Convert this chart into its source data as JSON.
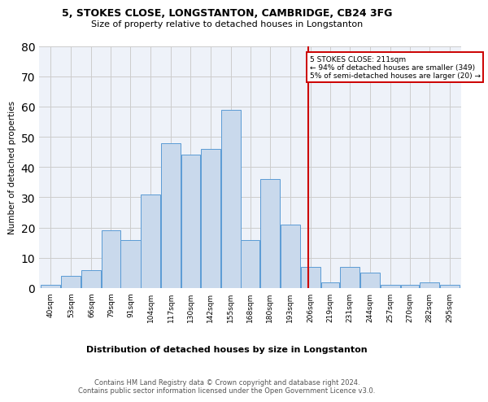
{
  "title1": "5, STOKES CLOSE, LONGSTANTON, CAMBRIDGE, CB24 3FG",
  "title2": "Size of property relative to detached houses in Longstanton",
  "xlabel": "Distribution of detached houses by size in Longstanton",
  "ylabel": "Number of detached properties",
  "footer": "Contains HM Land Registry data © Crown copyright and database right 2024.\nContains public sector information licensed under the Open Government Licence v3.0.",
  "bin_labels": [
    "40sqm",
    "53sqm",
    "66sqm",
    "79sqm",
    "91sqm",
    "104sqm",
    "117sqm",
    "130sqm",
    "142sqm",
    "155sqm",
    "168sqm",
    "180sqm",
    "193sqm",
    "206sqm",
    "219sqm",
    "231sqm",
    "244sqm",
    "257sqm",
    "270sqm",
    "282sqm",
    "295sqm"
  ],
  "bar_heights": [
    1,
    4,
    6,
    19,
    16,
    31,
    48,
    44,
    46,
    59,
    16,
    36,
    21,
    7,
    2,
    7,
    5,
    1,
    1,
    2,
    1
  ],
  "bar_color": "#c9d9ec",
  "bar_edge_color": "#5b9bd5",
  "special_bins": [
    40,
    53,
    66,
    79,
    91,
    104,
    117,
    130,
    142,
    155,
    168,
    180,
    193,
    206,
    219,
    231,
    244,
    257,
    270,
    282,
    295
  ],
  "vline_x": 211,
  "annotation_text": "5 STOKES CLOSE: 211sqm\n← 94% of detached houses are smaller (349)\n5% of semi-detached houses are larger (20) →",
  "annotation_box_color": "#ffffff",
  "annotation_box_edge": "#cc0000",
  "vline_color": "#cc0000",
  "ylim": [
    0,
    80
  ],
  "yticks": [
    0,
    10,
    20,
    30,
    40,
    50,
    60,
    70,
    80
  ],
  "grid_color": "#cccccc",
  "background_color": "#eef2f9"
}
